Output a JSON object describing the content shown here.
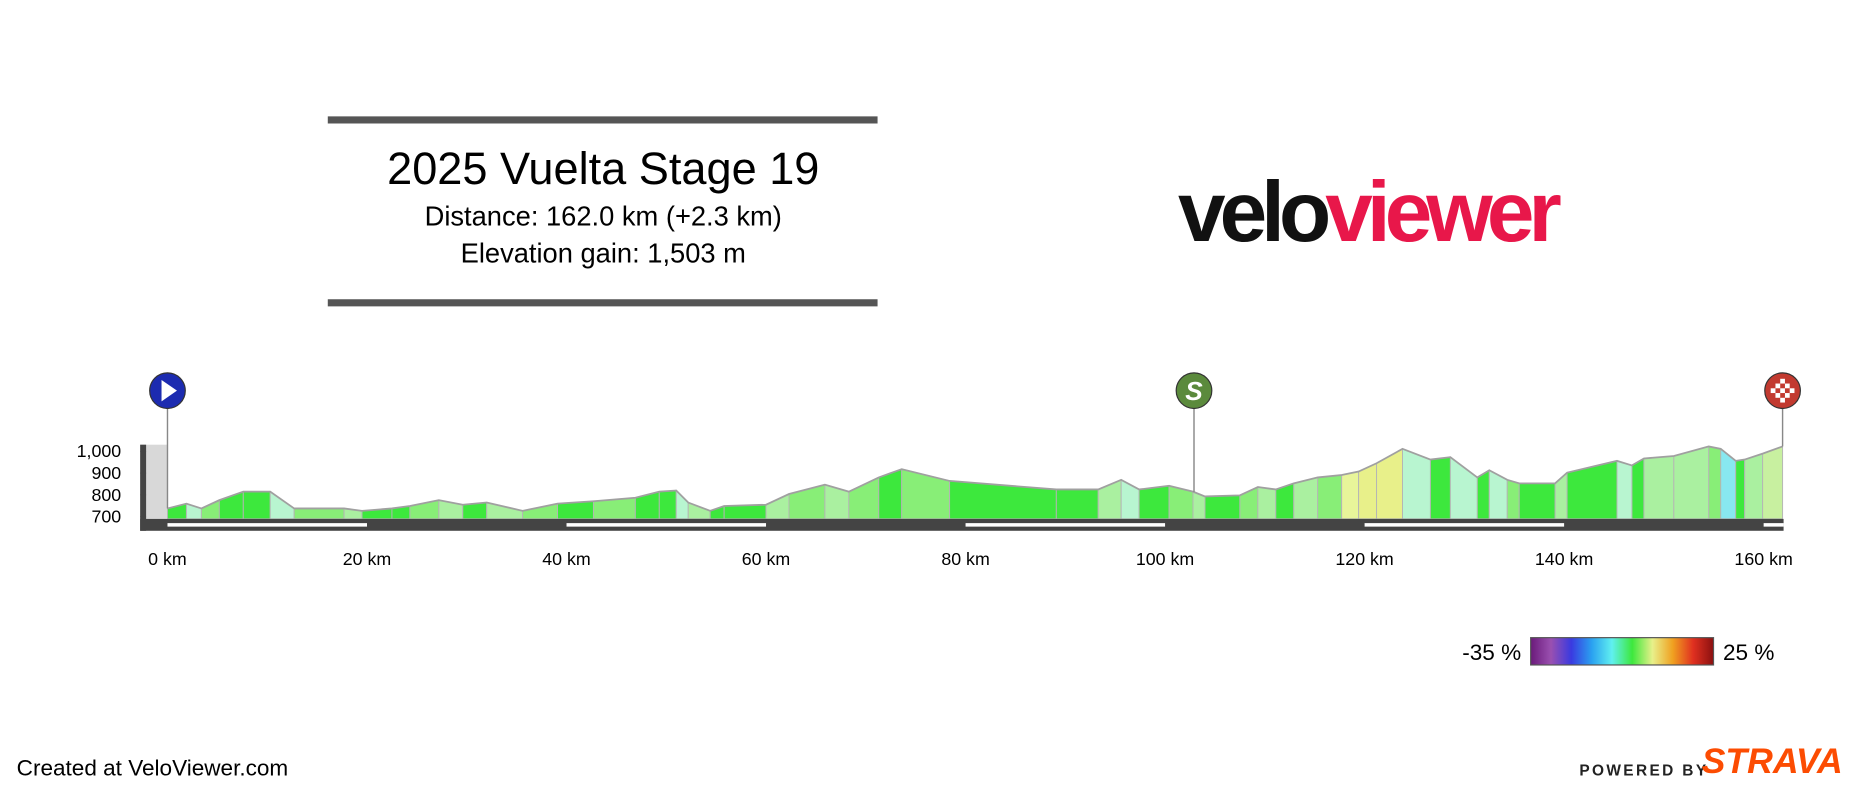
{
  "header": {
    "title": "2025 Vuelta Stage 19",
    "distance": "Distance: 162.0 km (+2.3 km)",
    "elevation_gain": "Elevation gain: 1,503 m"
  },
  "logo": {
    "part1": "velo",
    "part2": "viewer"
  },
  "chart_data": {
    "type": "area",
    "x": [
      0,
      1.9,
      3.4,
      5.2,
      7.6,
      10.3,
      12.7,
      17.7,
      19.5,
      22.5,
      24.3,
      27.2,
      29.6,
      32,
      35.6,
      39.1,
      42.7,
      46.9,
      49.3,
      51,
      52.2,
      54.4,
      55.8,
      60,
      62.3,
      65.9,
      68.3,
      71.3,
      73.6,
      78.4,
      89.1,
      93.3,
      95.6,
      97.4,
      100.4,
      102.8,
      104,
      107.5,
      109.3,
      111.1,
      112.9,
      115.3,
      117.7,
      119.4,
      121.2,
      123.8,
      126.6,
      128.6,
      131.3,
      132.5,
      134.3,
      135.5,
      139.1,
      140.3,
      145.3,
      146.8,
      148,
      151,
      154.5,
      155.7,
      157.2,
      158.1,
      159.9,
      161.9
    ],
    "values": [
      738,
      760,
      738,
      776,
      815,
      815,
      738,
      738,
      727,
      738,
      749,
      776,
      755,
      765,
      727,
      760,
      771,
      787,
      815,
      820,
      765,
      727,
      749,
      755,
      804,
      847,
      815,
      880,
      918,
      864,
      825,
      825,
      869,
      825,
      842,
      815,
      793,
      798,
      836,
      825,
      853,
      880,
      891,
      907,
      945,
      1011,
      962,
      973,
      880,
      913,
      869,
      853,
      853,
      902,
      956,
      935,
      967,
      978,
      1022,
      1011,
      956,
      962,
      989,
      1022
    ],
    "segment_colors": [
      "#3de83d",
      "#b8f5d0",
      "#88ee77",
      "#3de83d",
      "#3de83d",
      "#b8f5d0",
      "#88ee77",
      "#aaf0a0",
      "#3de83d",
      "#3de83d",
      "#88ee77",
      "#aaf0a0",
      "#3de83d",
      "#aaf0a0",
      "#88ee77",
      "#3de83d",
      "#88ee77",
      "#3de83d",
      "#3de83d",
      "#b8f5d0",
      "#aaf0a0",
      "#3de83d",
      "#3de83d",
      "#aaf0a0",
      "#88ee77",
      "#aaf0a0",
      "#88ee77",
      "#3de83d",
      "#88ee77",
      "#3de83d",
      "#3de83d",
      "#aaf0a0",
      "#b8f5d0",
      "#3de83d",
      "#88ee77",
      "#aaf0a0",
      "#3de83d",
      "#88ee77",
      "#aaf0a0",
      "#3de83d",
      "#aaf0a0",
      "#88ee77",
      "#e8f59a",
      "#e8f08a",
      "#e8f08a",
      "#b8f5d0",
      "#3de83d",
      "#b8f5d0",
      "#3de83d",
      "#b8f5d0",
      "#88ee77",
      "#3de83d",
      "#aaf0a0",
      "#3de83d",
      "#b8f5d0",
      "#3de83d",
      "#aaf0a0",
      "#aaf0a0",
      "#88ee77",
      "#88e8f0",
      "#3de83d",
      "#aaf0a0",
      "#c8f0a0"
    ],
    "outline_color": "#a0a0a0",
    "xlim": [
      0,
      162
    ],
    "ylim": [
      690,
      1030
    ],
    "xticks": [
      {
        "value": 0,
        "label": "0 km"
      },
      {
        "value": 20,
        "label": "20 km"
      },
      {
        "value": 40,
        "label": "40 km"
      },
      {
        "value": 60,
        "label": "60 km"
      },
      {
        "value": 80,
        "label": "80 km"
      },
      {
        "value": 100,
        "label": "100 km"
      },
      {
        "value": 120,
        "label": "120 km"
      },
      {
        "value": 140,
        "label": "140 km"
      },
      {
        "value": 160,
        "label": "160 km"
      }
    ],
    "yticks": [
      700,
      800,
      900,
      {
        "value": 1000,
        "label": "1,000"
      }
    ],
    "markers": [
      {
        "x": 0,
        "color": "#1c2bb0"
      },
      {
        "x": 102.9,
        "label": "S",
        "color": "#5b8a3c"
      },
      {
        "x": 161.9,
        "color": "#c23a30"
      }
    ],
    "gradient_legend": {
      "min_label": "-35 %",
      "max_label": "25 %",
      "colors": [
        "#6a1a7a",
        "#9a50b0",
        "#3a3ae0",
        "#2aa0f0",
        "#60f0f0",
        "#3de83d",
        "#e8f08a",
        "#f0a020",
        "#e03020",
        "#8a1010"
      ]
    }
  },
  "footer": {
    "created": "Created at VeloViewer.com",
    "powered": "POWERED BY",
    "brand": "STRAVA"
  }
}
